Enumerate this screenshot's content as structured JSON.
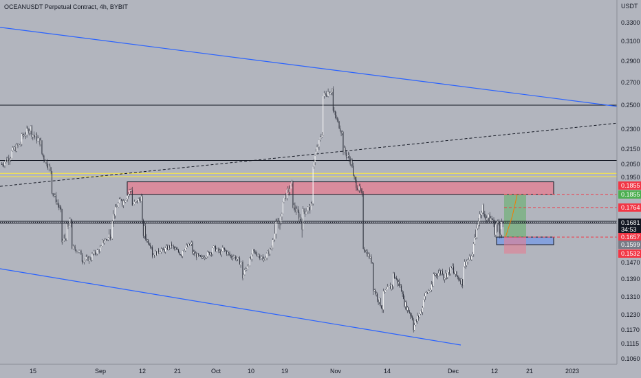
{
  "header": {
    "title": "OCEANUSDT Perpetual Contract, 4h, BYBIT"
  },
  "colors": {
    "background": "#b2b5be",
    "candle": "#ffffff",
    "channel": "#2962ff",
    "supply_zone": "#e57f92",
    "demand_zone": "#7f9ee0",
    "target_zone": "#4caf50",
    "stop_zone": "#e57f92",
    "yellow_level": "#ffeb3b",
    "price_tag_dark": "#131722",
    "price_tag_red": "#f23645",
    "price_tag_green": "#4caf50",
    "price_tag_grey": "#787b86"
  },
  "chart_data": {
    "type": "candlestick",
    "title": "OCEANUSDT Perpetual Contract, 4h, BYBIT",
    "currency": "USDT",
    "ylim": [
      0.103,
      0.345
    ],
    "y_ticks": [
      "0.3300",
      "0.3100",
      "0.2900",
      "0.2700",
      "0.2500",
      "0.2300",
      "0.2150",
      "0.2050",
      "0.1950",
      "0.1470",
      "0.1390",
      "0.1310",
      "0.1230",
      "0.1170",
      "0.1115",
      "0.1060"
    ],
    "x_ticks": [
      "15",
      "Sep",
      "12",
      "21",
      "Oct",
      "10",
      "19",
      "Nov",
      "14",
      "Dec",
      "12",
      "21",
      "2023"
    ],
    "price_path": [
      [
        0.205,
        0.211
      ],
      [
        0.213,
        0.22
      ],
      [
        0.224,
        0.232
      ],
      [
        0.227,
        0.219
      ],
      [
        0.212,
        0.199
      ],
      [
        0.188,
        0.172
      ],
      [
        0.162,
        0.17
      ],
      [
        0.158,
        0.153
      ],
      [
        0.149,
        0.15
      ],
      [
        0.152,
        0.158
      ],
      [
        0.162,
        0.167
      ],
      [
        0.171,
        0.184
      ],
      [
        0.18,
        0.19
      ],
      [
        0.178,
        0.184
      ],
      [
        0.168,
        0.158
      ],
      [
        0.152,
        0.157
      ],
      [
        0.155,
        0.16
      ],
      [
        0.158,
        0.152
      ],
      [
        0.156,
        0.161
      ],
      [
        0.154,
        0.149
      ],
      [
        0.151,
        0.155
      ],
      [
        0.158,
        0.153
      ],
      [
        0.157,
        0.15
      ],
      [
        0.152,
        0.146
      ],
      [
        0.14,
        0.152
      ],
      [
        0.155,
        0.15
      ],
      [
        0.148,
        0.159
      ],
      [
        0.165,
        0.172
      ],
      [
        0.182,
        0.192
      ],
      [
        0.178,
        0.168
      ],
      [
        0.174,
        0.178
      ],
      [
        0.205,
        0.23
      ],
      [
        0.258,
        0.265
      ],
      [
        0.245,
        0.225
      ],
      [
        0.215,
        0.204
      ],
      [
        0.195,
        0.183
      ],
      [
        0.158,
        0.146
      ],
      [
        0.135,
        0.125
      ],
      [
        0.132,
        0.137
      ],
      [
        0.141,
        0.133
      ],
      [
        0.129,
        0.121
      ],
      [
        0.118,
        0.127
      ],
      [
        0.131,
        0.136
      ],
      [
        0.141,
        0.143
      ],
      [
        0.14,
        0.145
      ],
      [
        0.142,
        0.137
      ],
      [
        0.146,
        0.152
      ],
      [
        0.162,
        0.179
      ],
      [
        0.172,
        0.17
      ],
      [
        0.168,
        0.168
      ]
    ],
    "levels": {
      "black_lines": [
        0.25,
        0.2075,
        0.1692,
        0.1682
      ],
      "yellow_lines": [
        0.198,
        0.1955
      ],
      "dotted_level": 0.1687,
      "red_dashed": [
        0.1855,
        0.1764,
        0.1657
      ]
    },
    "zones": {
      "supply_zone": [
        0.1855,
        0.1925
      ],
      "demand_zone": [
        0.1599,
        0.1657
      ],
      "position_target": [
        0.1657,
        0.1855
      ],
      "position_stop": [
        0.1532,
        0.1657
      ]
    },
    "trendlines": {
      "upper_channel": [
        [
          0.325,
          0.249
        ]
      ],
      "lower_channel": [
        [
          0.144,
          0.111
        ]
      ],
      "dashed_rising": [
        [
          0.19,
          0.235
        ]
      ]
    },
    "price_tags": [
      {
        "value": "0.1855",
        "style": "red"
      },
      {
        "value": "0.1855",
        "style": "green"
      },
      {
        "value": "0.1764",
        "style": "red"
      },
      {
        "value": "0.1681",
        "style": "dark"
      },
      {
        "value": "34:53",
        "style": "dark"
      },
      {
        "value": "0.1657",
        "style": "red"
      },
      {
        "value": "0.1599",
        "style": "grey"
      },
      {
        "value": "0.1532",
        "style": "red"
      }
    ],
    "grid": false,
    "legend": "none"
  }
}
